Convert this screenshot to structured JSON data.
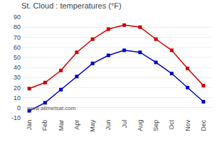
{
  "chart_data": {
    "type": "line",
    "title": "St. Cloud : temperatures (°F)",
    "categories": [
      "Jan",
      "Feb",
      "Mar",
      "Apr",
      "May",
      "Jun",
      "Jul",
      "Aug",
      "Sep",
      "Oct",
      "Nov",
      "Dec"
    ],
    "series": [
      {
        "color": "#cc0000",
        "marker": "square",
        "values": [
          19,
          25,
          37,
          55,
          68,
          78,
          82,
          80,
          68,
          57,
          39,
          22
        ]
      },
      {
        "color": "#0000cc",
        "marker": "square",
        "values": [
          -3,
          5,
          18,
          31,
          44,
          52,
          57,
          55,
          45,
          34,
          20,
          6
        ]
      }
    ],
    "ylim": [
      -10,
      90
    ],
    "yticks": [
      -10,
      0,
      10,
      20,
      30,
      40,
      50,
      60,
      70,
      80,
      90
    ],
    "grid": true,
    "annotations": [
      "www.allmetsat.com"
    ]
  }
}
